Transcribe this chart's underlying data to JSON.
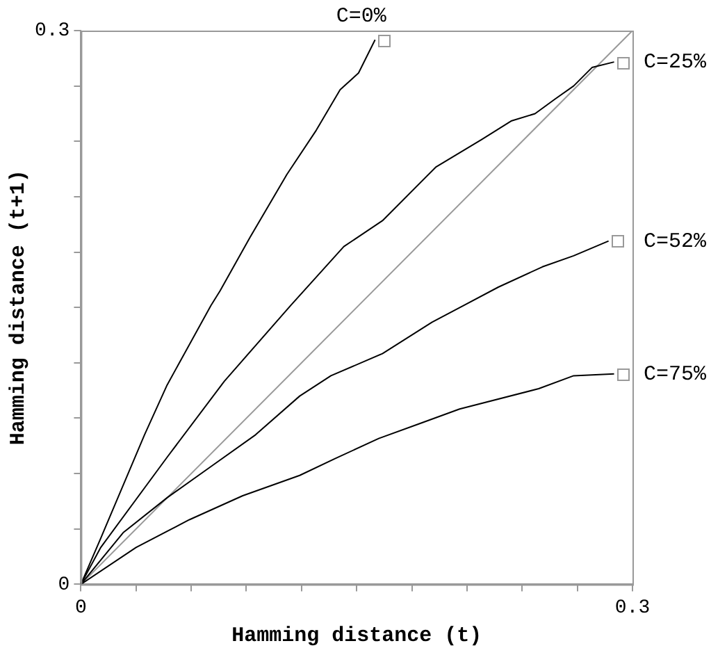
{
  "chart_data": {
    "type": "line",
    "xlabel": "Hamming distance (t)",
    "ylabel": "Hamming distance (t+1)",
    "xlim": [
      0,
      0.3
    ],
    "ylim": [
      0,
      0.3
    ],
    "xticks": [
      0,
      {
        "value": 0.03,
        "label": null
      },
      {
        "value": 0.06,
        "label": null
      },
      {
        "value": 0.09,
        "label": null
      },
      {
        "value": 0.12,
        "label": null
      },
      {
        "value": 0.15,
        "label": null
      },
      {
        "value": 0.18,
        "label": null
      },
      {
        "value": 0.21,
        "label": null
      },
      {
        "value": 0.24,
        "label": null
      },
      {
        "value": 0.27,
        "label": null
      },
      0.3
    ],
    "yticks": [
      0,
      {
        "value": 0.03,
        "label": null
      },
      {
        "value": 0.06,
        "label": null
      },
      {
        "value": 0.09,
        "label": null
      },
      {
        "value": 0.12,
        "label": null
      },
      {
        "value": 0.15,
        "label": null
      },
      {
        "value": 0.18,
        "label": null
      },
      {
        "value": 0.21,
        "label": null
      },
      {
        "value": 0.24,
        "label": null
      },
      {
        "value": 0.27,
        "label": null
      },
      0.3
    ],
    "grid": false,
    "legend": false,
    "marker": "none",
    "line_style": "solid",
    "series": [
      {
        "name": "C=0%",
        "color": "#000000",
        "x": [
          0,
          0.0108,
          0.0346,
          0.0469,
          0.0707,
          0.0757,
          0.092,
          0.112,
          0.128,
          0.141,
          0.151,
          0.16
        ],
        "values": [
          0,
          0.025,
          0.081,
          0.108,
          0.151,
          0.159,
          0.188,
          0.222,
          0.246,
          0.268,
          0.277,
          0.295
        ]
      },
      {
        "name": "C=25%",
        "color": "#000000",
        "x": [
          0,
          0.0108,
          0.047,
          0.078,
          0.114,
          0.143,
          0.164,
          0.193,
          0.218,
          0.234,
          0.247,
          0.258,
          0.268,
          0.278,
          0.29
        ],
        "values": [
          0,
          0.02,
          0.069,
          0.11,
          0.151,
          0.183,
          0.197,
          0.226,
          0.241,
          0.251,
          0.255,
          0.263,
          0.27,
          0.28,
          0.283
        ]
      },
      {
        "name": "C=52%",
        "color": "#000000",
        "x": [
          0,
          0.023,
          0.047,
          0.071,
          0.095,
          0.119,
          0.136,
          0.164,
          0.191,
          0.208,
          0.227,
          0.251,
          0.268,
          0.287
        ],
        "values": [
          0,
          0.028,
          0.047,
          0.064,
          0.081,
          0.102,
          0.113,
          0.125,
          0.142,
          0.151,
          0.161,
          0.172,
          0.178,
          0.186
        ]
      },
      {
        "name": "C=75%",
        "color": "#000000",
        "x": [
          0,
          0.03,
          0.059,
          0.088,
          0.119,
          0.138,
          0.162,
          0.184,
          0.206,
          0.249,
          0.268,
          0.29
        ],
        "values": [
          0,
          0.02,
          0.035,
          0.048,
          0.059,
          0.068,
          0.079,
          0.087,
          0.095,
          0.106,
          0.113,
          0.114
        ]
      },
      {
        "color": "#999999",
        "x": [
          0,
          0.3
        ],
        "values": [
          0,
          0.3
        ]
      }
    ]
  }
}
